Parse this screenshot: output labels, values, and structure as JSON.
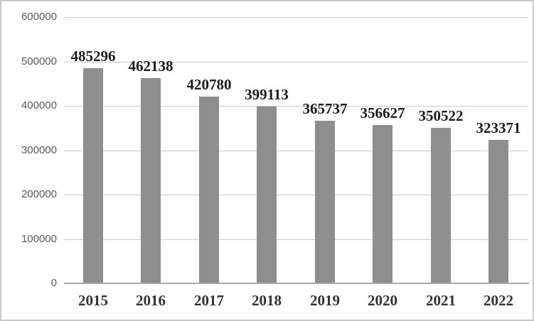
{
  "chart_data": {
    "type": "bar",
    "title": "",
    "xlabel": "",
    "ylabel": "",
    "categories": [
      "2015",
      "2016",
      "2017",
      "2018",
      "2019",
      "2020",
      "2021",
      "2022"
    ],
    "values": [
      485296,
      462138,
      420780,
      399113,
      365737,
      356627,
      350522,
      323371
    ],
    "data_labels": [
      "485296",
      "462138",
      "420780",
      "399113",
      "365737",
      "356627",
      "350522",
      "323371"
    ],
    "y_ticks": [
      0,
      100000,
      200000,
      300000,
      400000,
      500000,
      600000
    ],
    "y_tick_labels": [
      "0",
      "100000",
      "200000",
      "300000",
      "400000",
      "500000",
      "600000"
    ],
    "ylim": [
      0,
      600000
    ],
    "grid": "horizontal",
    "legend": "none",
    "colors": {
      "bar_fill": "#8e8e8e",
      "gridline": "#c9c9c9",
      "axis_line": "#a9a9a9",
      "y_tick_text": "#595959",
      "data_label_text": "#1c1c1c",
      "x_tick_text": "#333333",
      "frame_border": "#c8c8c8",
      "background": "#ffffff"
    }
  }
}
